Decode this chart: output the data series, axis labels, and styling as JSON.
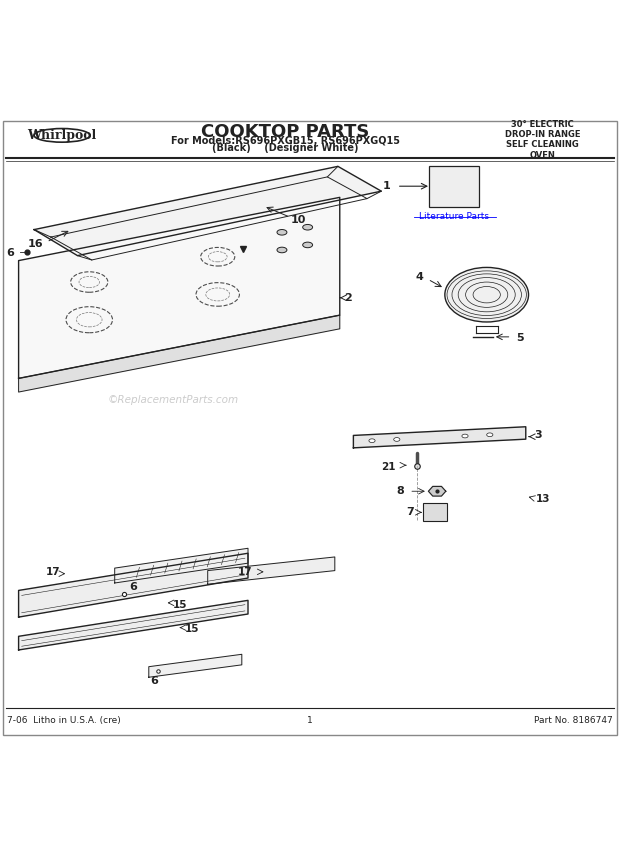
{
  "title": "COOKTOP PARTS",
  "subtitle_line1": "For Models:RS696PXGB15, RS696PXGQ15",
  "subtitle_line2": "(Black)    (Designer White)",
  "top_right_text": "30° ELECTRIC\nDROP-IN RANGE\nSELF CLEANING\nOVEN",
  "brand": "Whirlpool",
  "footer_left": "7-06  Litho in U.S.A. (cre)",
  "footer_center": "1",
  "footer_right": "Part No. 8186747",
  "literature_label": "Literature Parts",
  "bg_color": "#ffffff",
  "line_color": "#222222",
  "label_color": "#111111",
  "watermark": "©ReplacementParts.com"
}
